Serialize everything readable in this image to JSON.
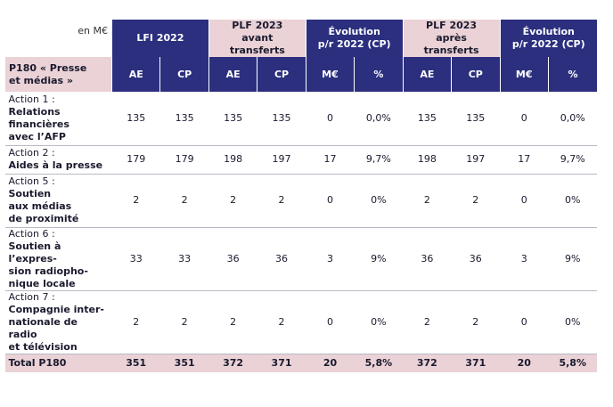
{
  "header": {
    "unit": "en M€",
    "groups": [
      "LFI 2022",
      "PLF 2023\navant transferts",
      "Évolution\np/r 2022 (CP)",
      "PLF 2023\naprès transferts",
      "Évolution\np/r 2022 (CP)"
    ],
    "row_label": "P180 « Presse\net médias »",
    "subheaders": [
      "AE",
      "CP",
      "AE",
      "CP",
      "M€",
      "%",
      "AE",
      "CP",
      "M€",
      "%"
    ]
  },
  "rows": [
    {
      "action": "Action 1 :",
      "name": "Relations\nfinancières\navec l’AFP",
      "values": [
        "135",
        "135",
        "135",
        "135",
        "0",
        "0,0%",
        "135",
        "135",
        "0",
        "0,0%"
      ]
    },
    {
      "action": "Action 2 :",
      "name": "Aides à la presse",
      "values": [
        "179",
        "179",
        "198",
        "197",
        "17",
        "9,7%",
        "198",
        "197",
        "17",
        "9,7%"
      ]
    },
    {
      "action": "Action 5 :",
      "name": "Soutien\naux médias\nde proximité",
      "values": [
        "2",
        "2",
        "2",
        "2",
        "0",
        "0%",
        "2",
        "2",
        "0",
        "0%"
      ]
    },
    {
      "action": "Action 6 :",
      "name": "Soutien à l’expres-\nsion radiopho-\nnique locale",
      "values": [
        "33",
        "33",
        "36",
        "36",
        "3",
        "9%",
        "36",
        "36",
        "3",
        "9%"
      ]
    },
    {
      "action": "Action 7 :",
      "name": "Compagnie inter-\nnationale de radio\net télévision",
      "values": [
        "2",
        "2",
        "2",
        "2",
        "0",
        "0%",
        "2",
        "2",
        "0",
        "0%"
      ]
    }
  ],
  "total": {
    "label": "Total P180",
    "values": [
      "351",
      "351",
      "372",
      "371",
      "20",
      "5,8%",
      "372",
      "371",
      "20",
      "5,8%"
    ]
  }
}
